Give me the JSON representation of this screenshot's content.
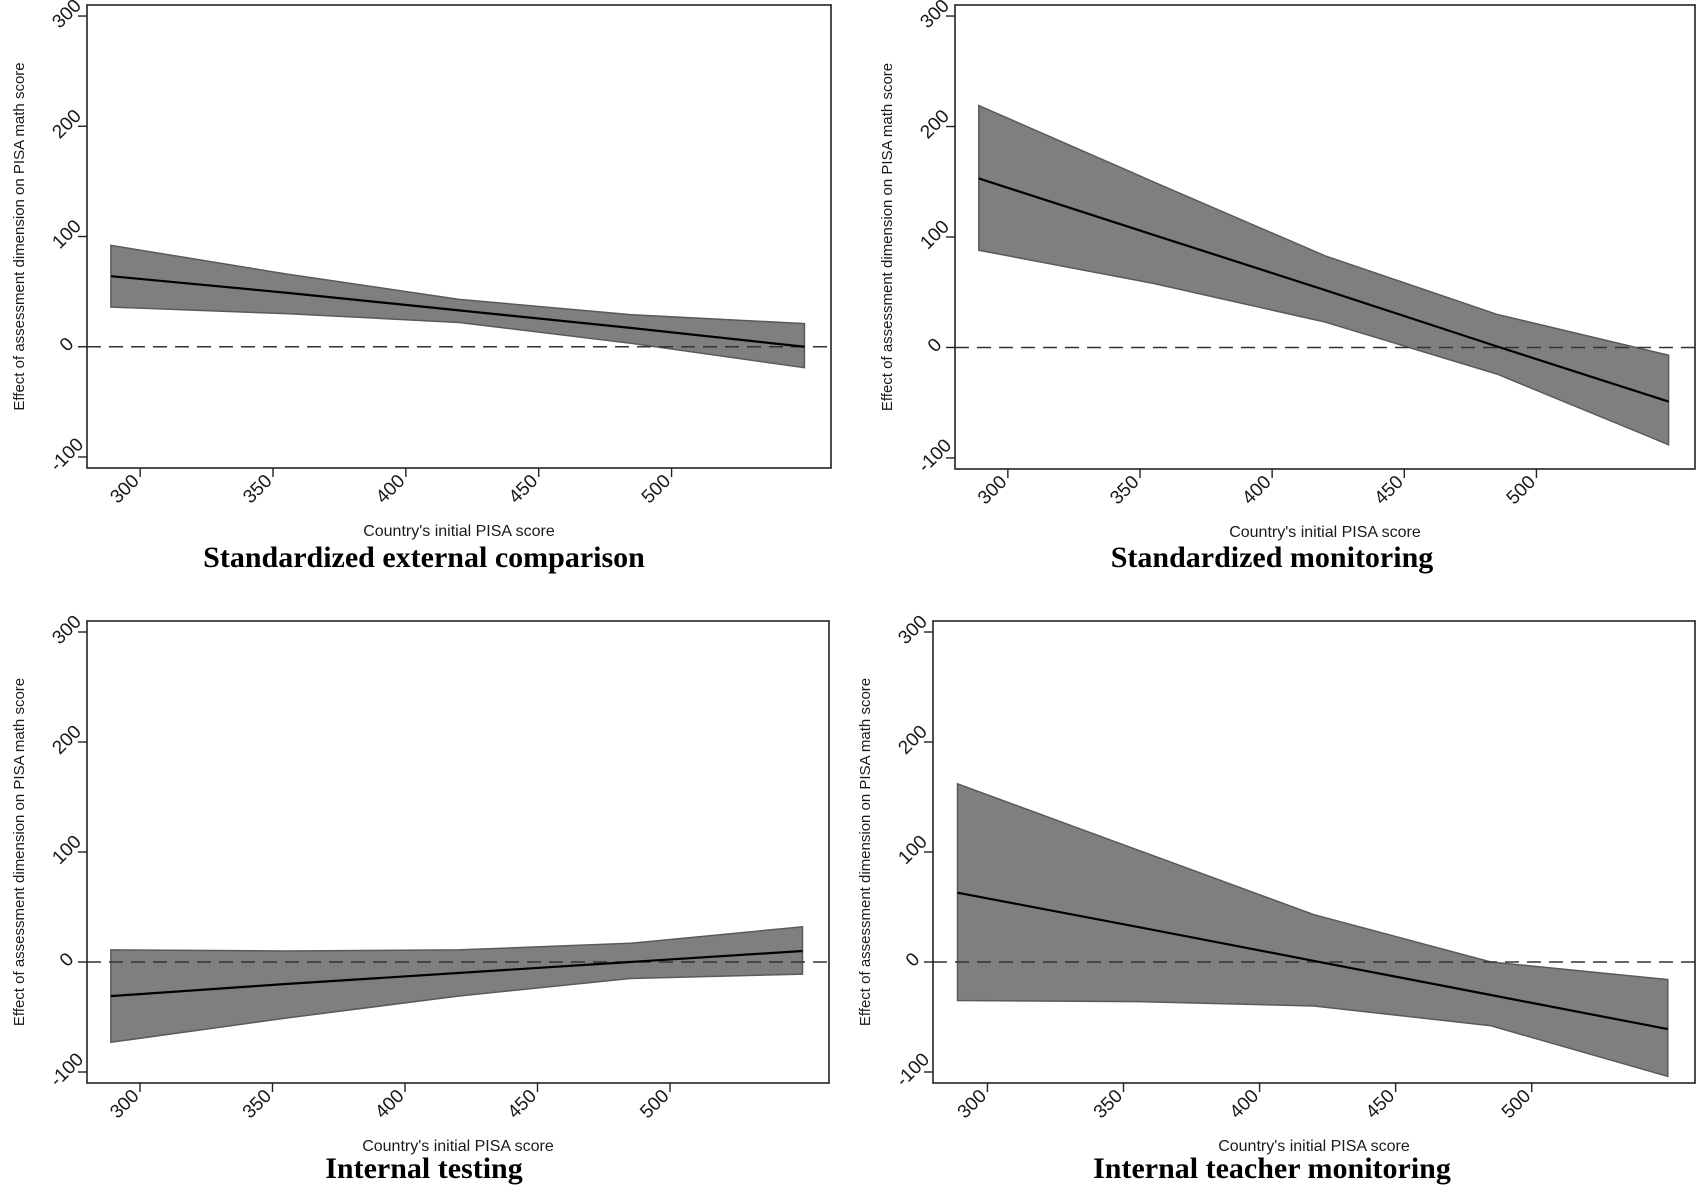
{
  "chart_data": [
    {
      "type": "area",
      "title": "Standardized external comparison",
      "xlabel": "Country's initial PISA score",
      "ylabel": "Effect of assessment dimension on PISA math score",
      "xlim": [
        280,
        560
      ],
      "ylim": [
        -110,
        310
      ],
      "xticks": [
        300,
        350,
        400,
        450,
        500
      ],
      "yticks": [
        -100,
        0,
        100,
        200,
        300
      ],
      "reference_line": 0,
      "grid": false,
      "x": [
        289,
        355,
        420,
        485,
        550
      ],
      "series": [
        {
          "values": [
            64,
            49,
            33,
            17,
            0
          ]
        },
        {
          "values": [
            92,
            66,
            43,
            29,
            21
          ]
        },
        {
          "values": [
            36,
            30,
            22,
            3,
            -19
          ]
        }
      ]
    },
    {
      "type": "area",
      "title": "Standardized monitoring",
      "xlabel": "Country's initial PISA score",
      "ylabel": "Effect of assessment dimension on PISA math score",
      "xlim": [
        280,
        560
      ],
      "ylim": [
        -110,
        310
      ],
      "xticks": [
        300,
        350,
        400,
        450,
        500
      ],
      "yticks": [
        -100,
        0,
        100,
        200,
        300
      ],
      "reference_line": 0,
      "grid": false,
      "x": [
        289,
        355,
        420,
        485,
        550
      ],
      "series": [
        {
          "values": [
            153,
            102,
            52,
            1,
            -49
          ]
        },
        {
          "values": [
            219,
            150,
            83,
            30,
            -7
          ]
        },
        {
          "values": [
            88,
            58,
            23,
            -24,
            -88
          ]
        }
      ]
    },
    {
      "type": "area",
      "title": "Internal testing",
      "xlabel": "Country's initial PISA score",
      "ylabel": "Effect of assessment dimension on PISA math score",
      "xlim": [
        280,
        560
      ],
      "ylim": [
        -110,
        310
      ],
      "xticks": [
        300,
        350,
        400,
        450,
        500
      ],
      "yticks": [
        -100,
        0,
        100,
        200,
        300
      ],
      "reference_line": 0,
      "grid": false,
      "x": [
        289,
        355,
        420,
        485,
        550
      ],
      "series": [
        {
          "values": [
            -31,
            -20,
            -10,
            0,
            10
          ]
        },
        {
          "values": [
            11,
            10,
            11,
            17,
            32
          ]
        },
        {
          "values": [
            -73,
            -51,
            -31,
            -15,
            -11
          ]
        }
      ]
    },
    {
      "type": "area",
      "title": "Internal teacher monitoring",
      "xlabel": "Country's initial PISA score",
      "ylabel": "Effect of assessment dimension on PISA math score",
      "xlim": [
        280,
        560
      ],
      "ylim": [
        -110,
        310
      ],
      "xticks": [
        300,
        350,
        400,
        450,
        500
      ],
      "yticks": [
        -100,
        0,
        100,
        200,
        300
      ],
      "reference_line": 0,
      "grid": false,
      "x": [
        289,
        355,
        420,
        485,
        550
      ],
      "series": [
        {
          "values": [
            63,
            32,
            1,
            -30,
            -61
          ]
        },
        {
          "values": [
            162,
            102,
            43,
            0,
            -16
          ]
        },
        {
          "values": [
            -35,
            -36,
            -40,
            -58,
            -104
          ]
        }
      ]
    }
  ]
}
